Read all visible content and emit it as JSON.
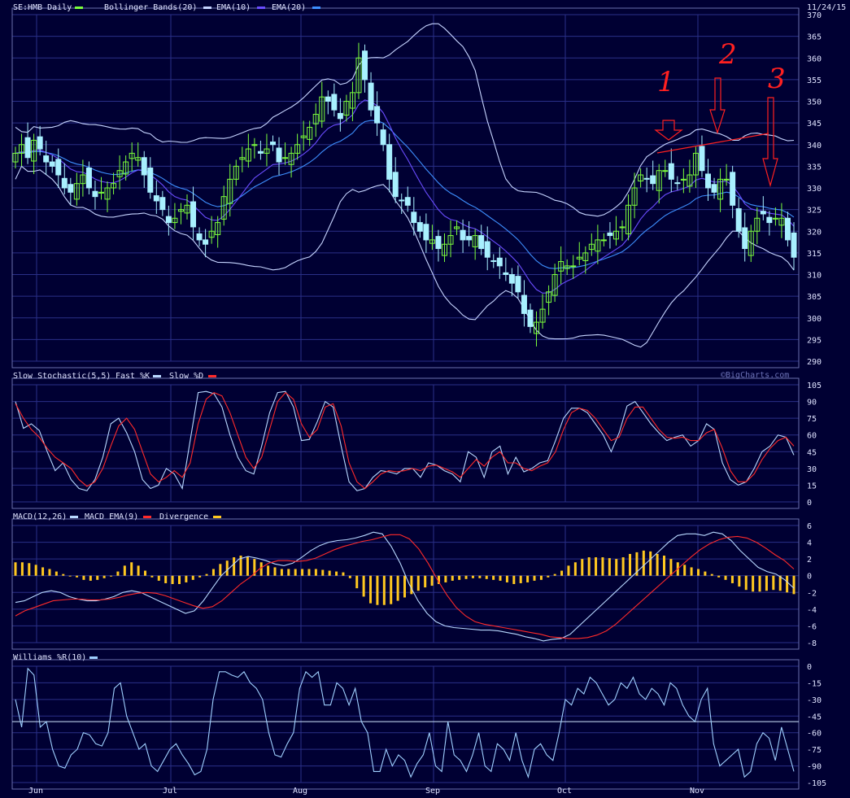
{
  "header": {
    "symbol_label": "SE:HMB Daily",
    "bb_label": "Bollinger Bands(20)",
    "ema10_label": "EMA(10)",
    "ema20_label": "EMA(20)",
    "date_label": "11/24/15",
    "watermark": "©BigCharts.com"
  },
  "colors": {
    "background": "#000033",
    "grid": "#2a2f88",
    "up_candle": "#7cff3c",
    "down_candle": "#a8f0ff",
    "bb": "#c6d4ff",
    "ema10": "#6a4cff",
    "ema20": "#3d8fff",
    "stoch_k": "#b8d8ff",
    "stoch_d": "#ff2a2a",
    "macd": "#b8d8ff",
    "macd_ema": "#ff2a2a",
    "divergence": "#ffc820",
    "williams": "#9fd0ff",
    "annotation": "#ff2020"
  },
  "annotations": [
    "1",
    "2",
    "3"
  ],
  "chart_data": [
    {
      "type": "candlestick",
      "title": "SE:HMB Daily",
      "ylim": [
        290,
        370
      ],
      "yticks": [
        290,
        295,
        300,
        305,
        310,
        315,
        320,
        325,
        330,
        335,
        340,
        345,
        350,
        355,
        360,
        365,
        370
      ],
      "x_labels": [
        "Jun",
        "Jul",
        "Aug",
        "Sep",
        "Oct",
        "Nov"
      ],
      "close": [
        338,
        340,
        337,
        341,
        339,
        336,
        335,
        333,
        330,
        329,
        331,
        333,
        330,
        328,
        329,
        330,
        331,
        334,
        336,
        338,
        337,
        333,
        329,
        327,
        325,
        322,
        323,
        325,
        326,
        321,
        318,
        317,
        320,
        322,
        328,
        332,
        335,
        337,
        339,
        340,
        338,
        339,
        340,
        336,
        337,
        338,
        340,
        342,
        344,
        347,
        351,
        350,
        348,
        346,
        350,
        352,
        360,
        355,
        348,
        345,
        340,
        332,
        328,
        327,
        326,
        322,
        320,
        318,
        318,
        316,
        317,
        319,
        321,
        318,
        318,
        319,
        316,
        314,
        313,
        312,
        310,
        308,
        306,
        301,
        298,
        299,
        302,
        306,
        310,
        313,
        312,
        312,
        314,
        315,
        317,
        318,
        318,
        319,
        320,
        321,
        326,
        330,
        333,
        332,
        331,
        334,
        334,
        332,
        331,
        332,
        333,
        338,
        334,
        330,
        329,
        332,
        332,
        326,
        320,
        316,
        320,
        323,
        324,
        322,
        323,
        323,
        318,
        314
      ],
      "series": [
        {
          "name": "Bollinger Bands(20)",
          "values": []
        },
        {
          "name": "EMA(10)",
          "values": []
        },
        {
          "name": "EMA(20)",
          "values": []
        }
      ]
    },
    {
      "type": "line",
      "title": "Slow Stochastic(5,5)",
      "ylim": [
        0,
        105
      ],
      "yticks": [
        0,
        15,
        30,
        45,
        60,
        75,
        90,
        105
      ],
      "series": [
        {
          "name": "Fast %K",
          "values": [
            90,
            66,
            70,
            64,
            45,
            28,
            35,
            20,
            12,
            10,
            20,
            40,
            70,
            75,
            62,
            45,
            20,
            12,
            15,
            30,
            25,
            12,
            55,
            98,
            99,
            97,
            85,
            60,
            40,
            28,
            25,
            50,
            80,
            98,
            99,
            85,
            55,
            56,
            72,
            90,
            85,
            50,
            18,
            10,
            12,
            22,
            28,
            27,
            25,
            30,
            30,
            22,
            35,
            33,
            28,
            25,
            18,
            45,
            40,
            22,
            45,
            50,
            25,
            40,
            27,
            30,
            35,
            37,
            55,
            75,
            84,
            84,
            80,
            70,
            60,
            45,
            62,
            86,
            90,
            80,
            70,
            62,
            55,
            58,
            60,
            50,
            55,
            70,
            65,
            35,
            20,
            15,
            18,
            30,
            45,
            50,
            60,
            58,
            42
          ]
        },
        {
          "name": "Slow %D",
          "values": [
            88,
            75,
            65,
            58,
            48,
            40,
            35,
            30,
            20,
            14,
            18,
            30,
            50,
            68,
            75,
            65,
            45,
            25,
            18,
            22,
            28,
            22,
            35,
            70,
            92,
            98,
            95,
            80,
            60,
            40,
            30,
            40,
            65,
            90,
            98,
            92,
            70,
            58,
            65,
            85,
            88,
            68,
            35,
            18,
            12,
            18,
            25,
            28,
            27,
            28,
            30,
            28,
            32,
            33,
            30,
            27,
            22,
            30,
            38,
            32,
            40,
            45,
            35,
            35,
            30,
            28,
            32,
            35,
            45,
            65,
            80,
            84,
            82,
            75,
            65,
            55,
            58,
            75,
            85,
            85,
            75,
            65,
            58,
            57,
            58,
            55,
            55,
            62,
            65,
            48,
            28,
            18,
            18,
            25,
            38,
            48,
            55,
            58,
            50
          ]
        }
      ]
    },
    {
      "type": "line",
      "title": "MACD(12,26)",
      "ylim": [
        -8,
        6
      ],
      "yticks": [
        -8,
        -6,
        -4,
        -2,
        0,
        2,
        4,
        6
      ],
      "series": [
        {
          "name": "MACD",
          "values": [
            -3.2,
            -3.0,
            -2.5,
            -2.0,
            -1.8,
            -2.0,
            -2.5,
            -2.8,
            -3.0,
            -3.0,
            -2.8,
            -2.5,
            -2.0,
            -1.8,
            -2.0,
            -2.5,
            -3.0,
            -3.5,
            -4.0,
            -4.5,
            -4.2,
            -3.0,
            -1.5,
            0.0,
            1.0,
            2.0,
            2.3,
            2.1,
            1.8,
            1.4,
            1.2,
            1.5,
            2.2,
            3.0,
            3.6,
            4.0,
            4.2,
            4.3,
            4.5,
            4.8,
            5.2,
            5.0,
            3.5,
            1.5,
            -1.0,
            -3.0,
            -4.5,
            -5.5,
            -6.0,
            -6.2,
            -6.3,
            -6.4,
            -6.5,
            -6.5,
            -6.6,
            -6.8,
            -7.0,
            -7.3,
            -7.5,
            -7.8,
            -7.6,
            -7.5,
            -7.0,
            -6.0,
            -5.0,
            -4.0,
            -3.0,
            -2.0,
            -1.0,
            0.0,
            1.0,
            2.0,
            3.0,
            4.0,
            4.8,
            5.0,
            5.0,
            4.8,
            5.2,
            5.0,
            4.2,
            3.0,
            2.0,
            1.0,
            0.5,
            0.2,
            -0.5,
            -1.5
          ]
        },
        {
          "name": "MACD EMA(9)",
          "values": [
            -4.8,
            -4.2,
            -3.8,
            -3.4,
            -3.0,
            -2.9,
            -2.8,
            -2.8,
            -2.9,
            -2.9,
            -2.8,
            -2.6,
            -2.3,
            -2.1,
            -2.0,
            -2.1,
            -2.4,
            -2.8,
            -3.2,
            -3.6,
            -3.9,
            -3.7,
            -3.0,
            -2.0,
            -1.0,
            -0.2,
            0.8,
            1.5,
            1.8,
            1.8,
            1.7,
            1.8,
            2.1,
            2.6,
            3.1,
            3.5,
            3.8,
            4.1,
            4.3,
            4.6,
            4.9,
            4.9,
            4.4,
            3.2,
            1.5,
            -0.5,
            -2.3,
            -3.8,
            -4.8,
            -5.5,
            -5.8,
            -6.0,
            -6.2,
            -6.4,
            -6.6,
            -6.8,
            -7.0,
            -7.3,
            -7.4,
            -7.5,
            -7.5,
            -7.4,
            -7.1,
            -6.6,
            -5.8,
            -4.8,
            -3.8,
            -2.8,
            -1.8,
            -0.8,
            0.2,
            1.2,
            2.2,
            3.1,
            3.8,
            4.3,
            4.6,
            4.7,
            4.5,
            4.0,
            3.3,
            2.5,
            1.8,
            0.8
          ]
        },
        {
          "name": "Divergence",
          "values": [
            1.6,
            1.6,
            1.5,
            1.3,
            1.0,
            0.8,
            0.5,
            0.2,
            0.0,
            -0.2,
            -0.5,
            -0.6,
            -0.5,
            -0.3,
            -0.1,
            0.5,
            1.2,
            1.6,
            1.2,
            0.6,
            -0.2,
            -0.6,
            -0.9,
            -1.0,
            -1.0,
            -0.8,
            -0.5,
            -0.2,
            0.2,
            0.8,
            1.4,
            1.8,
            2.2,
            2.4,
            2.3,
            2.0,
            1.6,
            1.2,
            1.0,
            0.8,
            0.8,
            0.8,
            0.8,
            0.8,
            0.8,
            0.7,
            0.6,
            0.5,
            0.4,
            -0.3,
            -1.5,
            -2.5,
            -3.3,
            -3.5,
            -3.5,
            -3.4,
            -3.0,
            -2.6,
            -2.2,
            -1.8,
            -1.4,
            -1.2,
            -1.0,
            -0.8,
            -0.6,
            -0.5,
            -0.4,
            -0.3,
            -0.3,
            -0.4,
            -0.5,
            -0.6,
            -0.8,
            -1.0,
            -0.9,
            -0.8,
            -0.6,
            -0.5,
            -0.2,
            0.2,
            0.6,
            1.2,
            1.6,
            2.0,
            2.2,
            2.2,
            2.2,
            2.1,
            2.0,
            2.2,
            2.6,
            2.8,
            3.0,
            2.9,
            2.6,
            2.4,
            2.0,
            1.6,
            1.3,
            1.0,
            0.8,
            0.5,
            0.2,
            -0.2,
            -0.5,
            -0.9,
            -1.3,
            -1.7,
            -1.9,
            -1.9,
            -1.8,
            -1.7,
            -1.8,
            -2.0,
            -2.2
          ]
        }
      ]
    },
    {
      "type": "line",
      "title": "Williams %R(10)",
      "ylim": [
        -105,
        0
      ],
      "yticks": [
        -105,
        -90,
        -75,
        -60,
        -45,
        -30,
        -15,
        0
      ],
      "reference_line": -50,
      "series": [
        {
          "name": "Williams %R(10)",
          "values": [
            -30,
            -55,
            -2,
            -8,
            -55,
            -50,
            -75,
            -90,
            -92,
            -80,
            -75,
            -60,
            -62,
            -70,
            -72,
            -60,
            -20,
            -15,
            -45,
            -60,
            -75,
            -70,
            -90,
            -95,
            -85,
            -75,
            -70,
            -80,
            -88,
            -98,
            -95,
            -75,
            -30,
            -5,
            -5,
            -8,
            -10,
            -5,
            -15,
            -20,
            -30,
            -60,
            -80,
            -82,
            -70,
            -60,
            -20,
            -5,
            -10,
            -5,
            -35,
            -35,
            -15,
            -20,
            -35,
            -20,
            -50,
            -60,
            -95,
            -95,
            -75,
            -90,
            -80,
            -85,
            -100,
            -88,
            -80,
            -60,
            -90,
            -95,
            -50,
            -80,
            -85,
            -95,
            -80,
            -60,
            -90,
            -95,
            -70,
            -75,
            -85,
            -60,
            -85,
            -100,
            -75,
            -70,
            -80,
            -85,
            -60,
            -30,
            -35,
            -20,
            -25,
            -10,
            -15,
            -25,
            -35,
            -30,
            -15,
            -20,
            -10,
            -25,
            -30,
            -20,
            -25,
            -35,
            -15,
            -20,
            -35,
            -45,
            -50,
            -30,
            -20,
            -70,
            -90,
            -85,
            -80,
            -75,
            -100,
            -95,
            -70,
            -60,
            -65,
            -85,
            -55,
            -75,
            -95
          ]
        }
      ]
    }
  ]
}
